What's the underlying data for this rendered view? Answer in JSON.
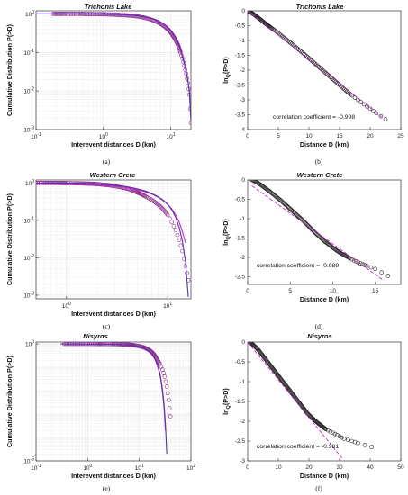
{
  "chart_data": [
    {
      "id": "a",
      "type": "line",
      "caption": "(a)",
      "title": "Trichonis Lake",
      "xlabel": "Interevent distances D (km)",
      "ylabel": "Cumulative Distribution P(>D)",
      "xscale": "log",
      "yscale": "log",
      "xlim": [
        0.1,
        20
      ],
      "ylim": [
        0.001,
        1.2
      ],
      "xticks": [
        {
          "v": 0.1,
          "label": "10^-1"
        },
        {
          "v": 1,
          "label": "10^0"
        },
        {
          "v": 10,
          "label": "10^1"
        }
      ],
      "yticks": [
        {
          "v": 0.001,
          "label": "10^-3"
        },
        {
          "v": 0.01,
          "label": "10^-2"
        },
        {
          "v": 0.1,
          "label": "10^-1"
        },
        {
          "v": 1,
          "label": "10^0"
        }
      ],
      "grid": true,
      "series": [
        {
          "kind": "markers",
          "color": "#8a2a8a",
          "x": [
            0.18,
            0.22,
            0.27,
            0.35,
            0.45,
            0.55,
            0.7,
            0.9,
            1.1,
            1.4,
            1.7,
            2.1,
            2.6,
            3.2,
            4.0,
            5.0,
            6.0,
            7.0,
            8.0,
            9.0,
            10,
            11,
            12,
            13,
            14,
            15,
            16,
            17,
            18,
            19,
            20
          ],
          "y": [
            1,
            1,
            1,
            1,
            1,
            0.99,
            0.99,
            0.98,
            0.97,
            0.96,
            0.94,
            0.92,
            0.9,
            0.86,
            0.8,
            0.72,
            0.64,
            0.56,
            0.48,
            0.4,
            0.33,
            0.26,
            0.2,
            0.15,
            0.1,
            0.07,
            0.045,
            0.028,
            0.016,
            0.008,
            0.0015
          ]
        },
        {
          "kind": "line",
          "color": "#cc22cc",
          "x": [
            0.1,
            0.2,
            0.5,
            1,
            2,
            3,
            4,
            5,
            6,
            7,
            8,
            9,
            10,
            11,
            12,
            13,
            14,
            15,
            16,
            17,
            18,
            19,
            20
          ],
          "y": [
            1,
            1,
            1,
            0.99,
            0.95,
            0.9,
            0.83,
            0.76,
            0.68,
            0.6,
            0.52,
            0.44,
            0.36,
            0.29,
            0.22,
            0.16,
            0.11,
            0.075,
            0.05,
            0.03,
            0.018,
            0.009,
            0.0015
          ]
        },
        {
          "kind": "line",
          "color": "#5533aa",
          "x": [
            0.1,
            0.2,
            0.5,
            1,
            2,
            3,
            4,
            5,
            6,
            7,
            8,
            9,
            10,
            11,
            12,
            13,
            14,
            15,
            16,
            17,
            18,
            19,
            20
          ],
          "y": [
            1,
            1,
            1,
            0.99,
            0.96,
            0.91,
            0.85,
            0.78,
            0.7,
            0.62,
            0.54,
            0.46,
            0.38,
            0.3,
            0.23,
            0.17,
            0.12,
            0.08,
            0.052,
            0.032,
            0.019,
            0.01,
            0.0018
          ]
        }
      ]
    },
    {
      "id": "b",
      "type": "line",
      "caption": "(b)",
      "title": "Trichonis Lake",
      "xlabel": "Distance D (km)",
      "ylabel": "ln_Q(P>D)",
      "annotation": "correlation coefficient = -0.998",
      "xscale": "linear",
      "yscale": "linear",
      "xlim": [
        0,
        25
      ],
      "ylim": [
        -4,
        0
      ],
      "xticks": [
        {
          "v": 0,
          "label": "0"
        },
        {
          "v": 5,
          "label": "5"
        },
        {
          "v": 10,
          "label": "10"
        },
        {
          "v": 15,
          "label": "15"
        },
        {
          "v": 20,
          "label": "20"
        },
        {
          "v": 25,
          "label": "25"
        }
      ],
      "yticks": [
        {
          "v": -4,
          "label": "-4"
        },
        {
          "v": -3.5,
          "label": "-3.5"
        },
        {
          "v": -3,
          "label": "-3"
        },
        {
          "v": -2.5,
          "label": "-2.5"
        },
        {
          "v": -2,
          "label": "-2"
        },
        {
          "v": -1.5,
          "label": "-1.5"
        },
        {
          "v": -1,
          "label": "-1"
        },
        {
          "v": -0.5,
          "label": "-0.5"
        },
        {
          "v": 0,
          "label": "0"
        }
      ],
      "grid": false,
      "series": [
        {
          "kind": "markers",
          "color": "#222222",
          "x": [
            0,
            0.5,
            1,
            1.5,
            2,
            2.5,
            3,
            3.5,
            4,
            5,
            6,
            7,
            8,
            9,
            10,
            11,
            12,
            13,
            14,
            15,
            16,
            17,
            18,
            19,
            20,
            21,
            22.5
          ],
          "y": [
            0,
            -0.05,
            -0.12,
            -0.2,
            -0.28,
            -0.36,
            -0.45,
            -0.52,
            -0.6,
            -0.75,
            -0.92,
            -1.08,
            -1.25,
            -1.42,
            -1.6,
            -1.78,
            -1.96,
            -2.14,
            -2.32,
            -2.5,
            -2.68,
            -2.85,
            -3.0,
            -3.15,
            -3.3,
            -3.45,
            -3.65
          ]
        },
        {
          "kind": "dashed",
          "color": "#cc22cc",
          "x": [
            0,
            22
          ],
          "y": [
            0,
            -3.6
          ]
        }
      ]
    },
    {
      "id": "c",
      "type": "line",
      "caption": "(c)",
      "title": "Western Crete",
      "xlabel": "Interevent distances D (km)",
      "ylabel": "Cumulative Distribution P(>D)",
      "xscale": "log",
      "yscale": "log",
      "xlim": [
        0.5,
        17
      ],
      "ylim": [
        0.0008,
        1.2
      ],
      "xticks": [
        {
          "v": 1,
          "label": "10^0"
        },
        {
          "v": 10,
          "label": "10^1"
        }
      ],
      "yticks": [
        {
          "v": 0.001,
          "label": "10^-3"
        },
        {
          "v": 0.01,
          "label": "10^-2"
        },
        {
          "v": 0.1,
          "label": "10^-1"
        },
        {
          "v": 1,
          "label": "10^0"
        }
      ],
      "grid": true,
      "series": [
        {
          "kind": "markers",
          "color": "#8a2a8a",
          "x": [
            0.5,
            0.6,
            0.7,
            0.8,
            0.9,
            1.0,
            1.2,
            1.4,
            1.6,
            1.8,
            2.0,
            2.3,
            2.6,
            3.0,
            3.5,
            4.0,
            4.5,
            5.0,
            5.5,
            6.0,
            7.0,
            8.0,
            9.0,
            10,
            11,
            12,
            13,
            14,
            15,
            16
          ],
          "y": [
            1,
            1,
            1,
            1,
            0.99,
            0.99,
            0.98,
            0.97,
            0.96,
            0.95,
            0.93,
            0.9,
            0.87,
            0.82,
            0.76,
            0.7,
            0.63,
            0.56,
            0.5,
            0.44,
            0.35,
            0.27,
            0.2,
            0.14,
            0.09,
            0.055,
            0.03,
            0.015,
            0.006,
            0.0025
          ]
        },
        {
          "kind": "line",
          "color": "#cc22cc",
          "x": [
            0.5,
            1,
            1.5,
            2,
            3,
            4,
            5,
            6,
            7,
            8,
            9,
            10,
            11,
            12,
            13,
            14,
            15
          ],
          "y": [
            0.97,
            0.95,
            0.92,
            0.89,
            0.82,
            0.74,
            0.66,
            0.58,
            0.5,
            0.42,
            0.34,
            0.27,
            0.2,
            0.14,
            0.09,
            0.05,
            0.025
          ]
        },
        {
          "kind": "line",
          "color": "#5533aa",
          "x": [
            0.5,
            1,
            1.5,
            2,
            3,
            4,
            5,
            6,
            7,
            8,
            9,
            10,
            11,
            12,
            13,
            14,
            15,
            16
          ],
          "y": [
            1,
            0.99,
            0.97,
            0.94,
            0.87,
            0.79,
            0.7,
            0.61,
            0.52,
            0.43,
            0.35,
            0.27,
            0.19,
            0.12,
            0.065,
            0.028,
            0.008,
            0.0009
          ]
        }
      ]
    },
    {
      "id": "d",
      "type": "line",
      "caption": "(d)",
      "title": "Western Crete",
      "xlabel": "Distance D (km)",
      "ylabel": "ln_Q(P>D)",
      "annotation": "correlation coefficient = -0.989",
      "xscale": "linear",
      "yscale": "linear",
      "xlim": [
        0,
        18
      ],
      "ylim": [
        -2.7,
        0
      ],
      "xticks": [
        {
          "v": 0,
          "label": "0"
        },
        {
          "v": 5,
          "label": "5"
        },
        {
          "v": 10,
          "label": "10"
        },
        {
          "v": 15,
          "label": "15"
        }
      ],
      "yticks": [
        {
          "v": -2.5,
          "label": "-2.5"
        },
        {
          "v": -2,
          "label": "-2"
        },
        {
          "v": -1.5,
          "label": "-1.5"
        },
        {
          "v": -1,
          "label": "-1"
        },
        {
          "v": -0.5,
          "label": "-0.5"
        },
        {
          "v": 0,
          "label": "0"
        }
      ],
      "grid": false,
      "series": [
        {
          "kind": "markers",
          "color": "#222222",
          "x": [
            0.5,
            1,
            1.5,
            2,
            2.5,
            3,
            3.5,
            4,
            4.5,
            5,
            5.5,
            6,
            6.5,
            7,
            7.5,
            8,
            8.5,
            9,
            9.5,
            10,
            10.5,
            11,
            11.5,
            12,
            12.5,
            13,
            13.5,
            14,
            15,
            16.5
          ],
          "y": [
            0,
            -0.05,
            -0.12,
            -0.2,
            -0.28,
            -0.37,
            -0.46,
            -0.55,
            -0.65,
            -0.75,
            -0.85,
            -0.95,
            -1.05,
            -1.16,
            -1.27,
            -1.38,
            -1.48,
            -1.58,
            -1.66,
            -1.75,
            -1.83,
            -1.9,
            -1.96,
            -2.02,
            -2.08,
            -2.13,
            -2.18,
            -2.22,
            -2.3,
            -2.48
          ]
        },
        {
          "kind": "dashed",
          "color": "#cc22cc",
          "x": [
            0.5,
            16
          ],
          "y": [
            -0.15,
            -2.6
          ]
        }
      ]
    },
    {
      "id": "e",
      "type": "line",
      "caption": "(e)",
      "title": "Nisyros",
      "xlabel": "Interevent distances D (km)",
      "ylabel": "Cumulative Distribution P(>D)",
      "xscale": "log",
      "yscale": "log",
      "xlim": [
        0.1,
        100
      ],
      "ylim": [
        1e-05,
        1.2
      ],
      "xticks": [
        {
          "v": 0.1,
          "label": "10^-1"
        },
        {
          "v": 1,
          "label": "10^0"
        },
        {
          "v": 10,
          "label": "10^1"
        },
        {
          "v": 100,
          "label": "10^2"
        }
      ],
      "yticks": [
        {
          "v": 1e-05,
          "label": "10^-5"
        },
        {
          "v": 1,
          "label": "10^0"
        }
      ],
      "grid": true,
      "series": [
        {
          "kind": "markers",
          "color": "#8a2a8a",
          "x": [
            0.35,
            0.5,
            0.7,
            1,
            1.5,
            2,
            3,
            4,
            5,
            6,
            7,
            8,
            10,
            12,
            14,
            16,
            18,
            20,
            22,
            25,
            28,
            31,
            34,
            37,
            40
          ],
          "y": [
            1,
            1,
            1,
            1,
            0.99,
            0.99,
            0.98,
            0.97,
            0.95,
            0.93,
            0.9,
            0.87,
            0.8,
            0.72,
            0.62,
            0.52,
            0.42,
            0.32,
            0.22,
            0.14,
            0.08,
            0.04,
            0.015,
            0.004,
            0.0008
          ]
        },
        {
          "kind": "line",
          "color": "#cc22cc",
          "x": [
            0.3,
            1,
            2,
            4,
            6,
            8,
            10,
            12,
            14,
            16,
            18,
            20,
            22,
            24,
            26,
            28,
            30,
            32
          ],
          "y": [
            1,
            0.99,
            0.98,
            0.94,
            0.88,
            0.81,
            0.73,
            0.64,
            0.54,
            0.43,
            0.32,
            0.22,
            0.13,
            0.07,
            0.03,
            0.009,
            0.002,
            0.0002
          ]
        },
        {
          "kind": "line",
          "color": "#5533aa",
          "x": [
            0.3,
            1,
            2,
            4,
            6,
            8,
            10,
            12,
            14,
            16,
            18,
            20,
            22,
            24,
            26,
            28,
            30,
            32,
            34
          ],
          "y": [
            1,
            0.99,
            0.98,
            0.95,
            0.9,
            0.83,
            0.75,
            0.66,
            0.56,
            0.45,
            0.34,
            0.24,
            0.15,
            0.08,
            0.035,
            0.012,
            0.003,
            0.0004,
            2e-05
          ]
        }
      ]
    },
    {
      "id": "f",
      "type": "line",
      "caption": "(f)",
      "title": "Nisyros",
      "xlabel": "Distance D (km)",
      "ylabel": "ln_Q(P>D)",
      "annotation": "correlation coefficient = -0.981",
      "xscale": "linear",
      "yscale": "linear",
      "xlim": [
        0,
        50
      ],
      "ylim": [
        -3,
        0
      ],
      "xticks": [
        {
          "v": 0,
          "label": "0"
        },
        {
          "v": 10,
          "label": "10"
        },
        {
          "v": 20,
          "label": "20"
        },
        {
          "v": 30,
          "label": "30"
        },
        {
          "v": 40,
          "label": "40"
        },
        {
          "v": 50,
          "label": "50"
        }
      ],
      "yticks": [
        {
          "v": -3,
          "label": "-3"
        },
        {
          "v": -2.5,
          "label": "-2.5"
        },
        {
          "v": -2,
          "label": "-2"
        },
        {
          "v": -1.5,
          "label": "-1.5"
        },
        {
          "v": -1,
          "label": "-1"
        },
        {
          "v": -0.5,
          "label": "-0.5"
        },
        {
          "v": 0,
          "label": "0"
        }
      ],
      "grid": false,
      "series": [
        {
          "kind": "markers",
          "color": "#222222",
          "x": [
            0.5,
            1.5,
            2.5,
            3.5,
            4.5,
            5.5,
            6.5,
            7.5,
            8.5,
            9.5,
            10.5,
            11.5,
            12.5,
            13.5,
            14.5,
            15.5,
            16.5,
            17.5,
            18.5,
            19.5,
            20.5,
            21.5,
            22.5,
            23.5,
            24.5,
            25.5,
            27,
            28.5,
            30,
            31.5,
            34,
            36,
            40.5
          ],
          "y": [
            0,
            -0.05,
            -0.12,
            -0.2,
            -0.3,
            -0.4,
            -0.5,
            -0.6,
            -0.7,
            -0.8,
            -0.9,
            -1.0,
            -1.1,
            -1.2,
            -1.3,
            -1.4,
            -1.5,
            -1.6,
            -1.7,
            -1.8,
            -1.88,
            -1.95,
            -2.02,
            -2.08,
            -2.14,
            -2.2,
            -2.26,
            -2.32,
            -2.38,
            -2.44,
            -2.5,
            -2.55,
            -2.65
          ]
        },
        {
          "kind": "dashed",
          "color": "#cc22cc",
          "x": [
            0,
            31
          ],
          "y": [
            0,
            -2.95
          ]
        }
      ]
    }
  ]
}
